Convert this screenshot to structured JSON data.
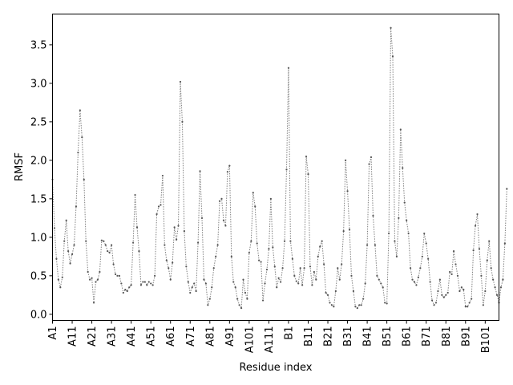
{
  "chart_data": {
    "type": "line",
    "title": "",
    "xlabel": "Residue index",
    "ylabel": "RMSF",
    "xlim": [
      0,
      227
    ],
    "ylim": [
      -0.08,
      3.9
    ],
    "yticks": [
      0.0,
      0.5,
      1.0,
      1.5,
      2.0,
      2.5,
      3.0,
      3.5
    ],
    "ytick_labels": [
      "0.0",
      "0.5",
      "1.0",
      "1.5",
      "2.0",
      "2.5",
      "3.0",
      "3.5"
    ],
    "xticks": [
      0,
      10,
      20,
      30,
      40,
      50,
      60,
      70,
      80,
      90,
      100,
      110,
      120,
      130,
      140,
      150,
      160,
      170,
      180,
      190,
      200,
      210,
      220
    ],
    "xtick_labels": [
      "A1",
      "A11",
      "A21",
      "A31",
      "A41",
      "A51",
      "A61",
      "A71",
      "A81",
      "A91",
      "A101",
      "A111",
      "B1",
      "B11",
      "B21",
      "B31",
      "B41",
      "B51",
      "B61",
      "B71",
      "B81",
      "B91",
      "B101"
    ],
    "grid": false,
    "line_color": "#808080",
    "marker_color": "#555555",
    "series": [
      {
        "x_start": 0,
        "values": [
          1.75,
          1.12,
          0.72,
          0.45,
          0.35,
          0.48,
          0.95,
          1.22,
          0.82,
          0.66,
          0.78,
          0.9,
          1.4,
          2.1,
          2.65,
          2.3,
          1.75,
          0.95,
          0.55,
          0.45,
          0.47,
          0.15,
          0.42,
          0.45,
          0.55,
          0.96,
          0.95,
          0.9,
          0.82,
          0.8,
          0.9,
          0.65,
          0.52,
          0.5,
          0.5,
          0.4,
          0.28,
          0.32,
          0.3,
          0.35,
          0.38,
          0.93,
          1.55,
          1.13,
          0.82,
          0.38,
          0.42,
          0.42,
          0.38,
          0.42,
          0.4,
          0.38,
          0.5,
          1.3,
          1.4,
          1.42,
          1.8,
          0.9,
          0.7,
          0.6,
          0.45,
          0.67,
          1.13,
          0.97,
          1.15,
          3.02,
          2.5,
          1.08,
          0.62,
          0.42,
          0.28,
          0.35,
          0.4,
          0.3,
          0.93,
          1.86,
          1.25,
          0.45,
          0.4,
          0.12,
          0.2,
          0.35,
          0.6,
          0.75,
          0.9,
          1.47,
          1.5,
          1.22,
          1.15,
          1.85,
          1.93,
          0.75,
          0.42,
          0.35,
          0.2,
          0.12,
          0.08,
          0.45,
          0.28,
          0.2,
          0.8,
          0.95,
          1.58,
          1.4,
          0.92,
          0.7,
          0.68,
          0.18,
          0.4,
          0.58,
          0.85,
          1.5,
          0.87,
          0.62,
          0.35,
          0.47,
          0.42,
          0.6,
          0.95,
          1.88,
          3.2,
          0.95,
          0.72,
          0.5,
          0.43,
          0.4,
          0.6,
          0.38,
          0.6,
          2.05,
          1.82,
          0.62,
          0.38,
          0.55,
          0.45,
          0.75,
          0.88,
          0.95,
          0.65,
          0.28,
          0.25,
          0.15,
          0.12,
          0.1,
          0.3,
          0.6,
          0.45,
          0.65,
          1.08,
          2.0,
          1.6,
          1.1,
          0.5,
          0.3,
          0.1,
          0.08,
          0.12,
          0.12,
          0.2,
          0.4,
          0.9,
          1.95,
          2.04,
          1.28,
          0.9,
          0.5,
          0.45,
          0.4,
          0.35,
          0.15,
          0.14,
          1.05,
          3.72,
          3.35,
          0.95,
          0.75,
          1.25,
          2.4,
          1.9,
          1.45,
          1.22,
          1.05,
          0.6,
          0.45,
          0.42,
          0.38,
          0.48,
          0.6,
          0.75,
          1.05,
          0.92,
          0.72,
          0.42,
          0.18,
          0.12,
          0.15,
          0.3,
          0.45,
          0.25,
          0.22,
          0.25,
          0.28,
          0.55,
          0.52,
          0.82,
          0.65,
          0.5,
          0.3,
          0.35,
          0.32,
          0.1,
          0.1,
          0.15,
          0.2,
          0.83,
          1.15,
          1.3,
          0.85,
          0.5,
          0.12,
          0.3,
          0.7,
          0.95,
          0.6,
          0.45,
          0.35,
          0.25,
          0.15,
          0.35,
          0.45,
          0.92,
          1.63
        ]
      }
    ]
  }
}
